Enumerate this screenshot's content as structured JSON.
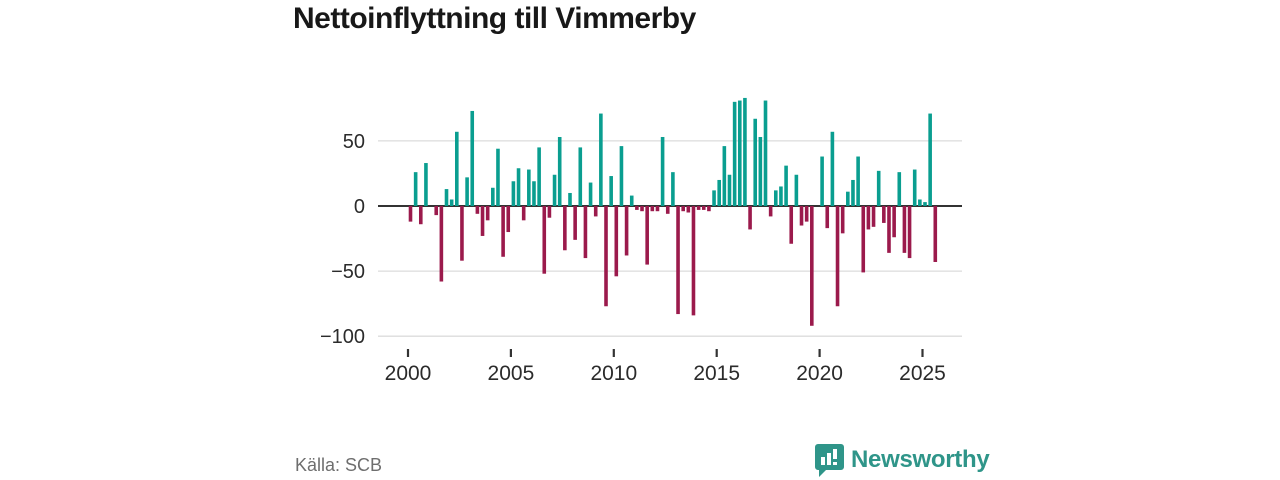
{
  "title": "Nettoinflyttning till Vimmerby",
  "footer": {
    "source": "Källa: SCB",
    "logo_text": "Newsworthy",
    "logo_color": "#2f9589"
  },
  "chart_data": {
    "type": "bar",
    "title": "Nettoinflyttning till Vimmerby",
    "x_unit": "quarter",
    "start": "2000Q1",
    "end": "2025Q3",
    "xticks": [
      2000,
      2005,
      2010,
      2015,
      2020,
      2025
    ],
    "yticks": [
      50,
      0,
      -50,
      -100
    ],
    "ylim": [
      -100,
      90
    ],
    "grid": "horizontal",
    "legend": "none",
    "positive_color": "#0a9e90",
    "negative_color": "#9b1a4c",
    "axis_text_color": "#2b2b2b",
    "gridline_color": "#dcdcdc",
    "zeroline_color": "#333333",
    "values_by_year": {
      "2000": [
        -12,
        26,
        -14,
        33
      ],
      "2001": [
        0,
        -7,
        -58,
        13
      ],
      "2002": [
        5,
        57,
        -42,
        22
      ],
      "2003": [
        73,
        -6,
        -23,
        -11
      ],
      "2004": [
        14,
        44,
        -39,
        -20
      ],
      "2005": [
        19,
        29,
        -11,
        28
      ],
      "2006": [
        19,
        45,
        -52,
        -9
      ],
      "2007": [
        24,
        53,
        -34,
        10
      ],
      "2008": [
        -26,
        45,
        -40,
        18
      ],
      "2009": [
        -8,
        71,
        -77,
        23
      ],
      "2010": [
        -54,
        46,
        -38,
        8
      ],
      "2011": [
        -3,
        -4,
        -45,
        -4
      ],
      "2012": [
        -4,
        53,
        -6,
        26
      ],
      "2013": [
        -83,
        -4,
        -5,
        -84
      ],
      "2014": [
        -3,
        -3,
        -4,
        12
      ],
      "2015": [
        20,
        46,
        24,
        80
      ],
      "2016": [
        81,
        83,
        -18,
        67
      ],
      "2017": [
        53,
        81,
        -8,
        12
      ],
      "2018": [
        15,
        31,
        -29,
        24
      ],
      "2019": [
        -15,
        -12,
        -92,
        0
      ],
      "2020": [
        38,
        -17,
        57,
        -77
      ],
      "2021": [
        -21,
        11,
        20,
        38
      ],
      "2022": [
        -51,
        -18,
        -16,
        27
      ],
      "2023": [
        -13,
        -36,
        -24,
        26
      ],
      "2024": [
        -36,
        -40,
        28,
        5
      ],
      "2025": [
        3,
        71,
        -43
      ]
    }
  }
}
